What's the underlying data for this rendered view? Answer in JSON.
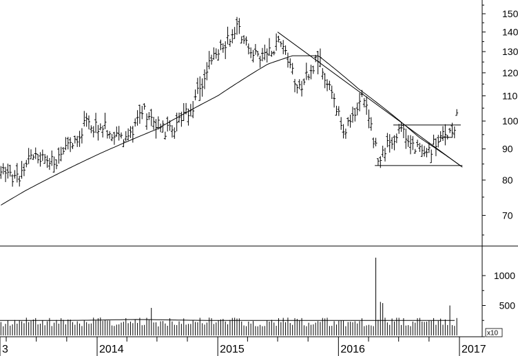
{
  "chart_data": {
    "type": "ohlc",
    "title": "",
    "price_axis": {
      "scale": "log",
      "ticks": [
        "150",
        "140",
        "130",
        "120",
        "110",
        "100",
        "90",
        "80",
        "70"
      ],
      "tick_values": [
        150,
        140,
        130,
        120,
        110,
        100,
        90,
        80,
        70
      ],
      "ylim": [
        60,
        160
      ],
      "position": "right"
    },
    "volume_axis": {
      "ticks": [
        "1000",
        "500"
      ],
      "tick_values": [
        1000,
        500
      ],
      "multiplier_label": "x10",
      "ylim": [
        0,
        1300
      ]
    },
    "time_axis": {
      "labels": [
        "3",
        "2014",
        "2015",
        "2016",
        "2017"
      ],
      "label_dates": [
        "2013-01-01",
        "2014-01-01",
        "2015-01-01",
        "2016-01-01",
        "2017-01-01"
      ],
      "range": [
        "2012-12-01",
        "2017-01-25"
      ]
    },
    "price_series_weekly_close": [
      {
        "date": "2012-12-01",
        "value": 79
      },
      {
        "date": "2013-03-01",
        "value": 83
      },
      {
        "date": "2013-05-01",
        "value": 80
      },
      {
        "date": "2013-06-15",
        "value": 88
      },
      {
        "date": "2013-09-01",
        "value": 85
      },
      {
        "date": "2013-12-01",
        "value": 99
      },
      {
        "date": "2014-02-01",
        "value": 97
      },
      {
        "date": "2014-04-01",
        "value": 92
      },
      {
        "date": "2014-05-15",
        "value": 105
      },
      {
        "date": "2014-08-01",
        "value": 96
      },
      {
        "date": "2014-10-15",
        "value": 104
      },
      {
        "date": "2014-12-01",
        "value": 122
      },
      {
        "date": "2015-03-01",
        "value": 143
      },
      {
        "date": "2015-05-01",
        "value": 126
      },
      {
        "date": "2015-07-15",
        "value": 136
      },
      {
        "date": "2015-09-01",
        "value": 113
      },
      {
        "date": "2015-11-01",
        "value": 127
      },
      {
        "date": "2016-01-15",
        "value": 96
      },
      {
        "date": "2016-03-15",
        "value": 110
      },
      {
        "date": "2016-05-01",
        "value": 86
      },
      {
        "date": "2016-07-01",
        "value": 97
      },
      {
        "date": "2016-09-15",
        "value": 88
      },
      {
        "date": "2016-11-01",
        "value": 93
      },
      {
        "date": "2016-12-10",
        "value": 97
      },
      {
        "date": "2016-12-28",
        "value": 102
      }
    ],
    "moving_average_approx": [
      {
        "date": "2012-12-01",
        "value": 67
      },
      {
        "date": "2013-06-01",
        "value": 77
      },
      {
        "date": "2014-01-01",
        "value": 88
      },
      {
        "date": "2014-07-01",
        "value": 97
      },
      {
        "date": "2015-01-01",
        "value": 110
      },
      {
        "date": "2015-06-01",
        "value": 124
      },
      {
        "date": "2015-08-15",
        "value": 128
      },
      {
        "date": "2015-11-01",
        "value": 128
      },
      {
        "date": "2016-03-01",
        "value": 113
      },
      {
        "date": "2016-09-01",
        "value": 94
      },
      {
        "date": "2017-01-10",
        "value": 84
      }
    ],
    "trend_lines": [
      {
        "name": "downtrend",
        "from": {
          "date": "2015-07-01",
          "value": 140
        },
        "to": {
          "date": "2017-01-10",
          "value": 84
        }
      },
      {
        "name": "support",
        "from": {
          "date": "2016-04-20",
          "value": 84.5
        },
        "to": {
          "date": "2017-01-10",
          "value": 84.5
        }
      },
      {
        "name": "resistance",
        "from": {
          "date": "2016-06-15",
          "value": 98.5
        },
        "to": {
          "date": "2017-01-05",
          "value": 98.5
        }
      },
      {
        "name": "short-level",
        "from": {
          "date": "2016-11-01",
          "value": 94
        },
        "to": {
          "date": "2016-12-10",
          "value": 94
        }
      }
    ],
    "volume_baseline_approx": 250,
    "volume_spikes": [
      {
        "date": "2013-01-05",
        "value": 470
      },
      {
        "date": "2014-06-15",
        "value": 460
      },
      {
        "date": "2016-04-25",
        "value": 1300
      },
      {
        "date": "2016-05-05",
        "value": 560
      },
      {
        "date": "2016-05-15",
        "value": 540
      },
      {
        "date": "2016-12-01",
        "value": 500
      }
    ],
    "grid": false,
    "legend": "none"
  }
}
